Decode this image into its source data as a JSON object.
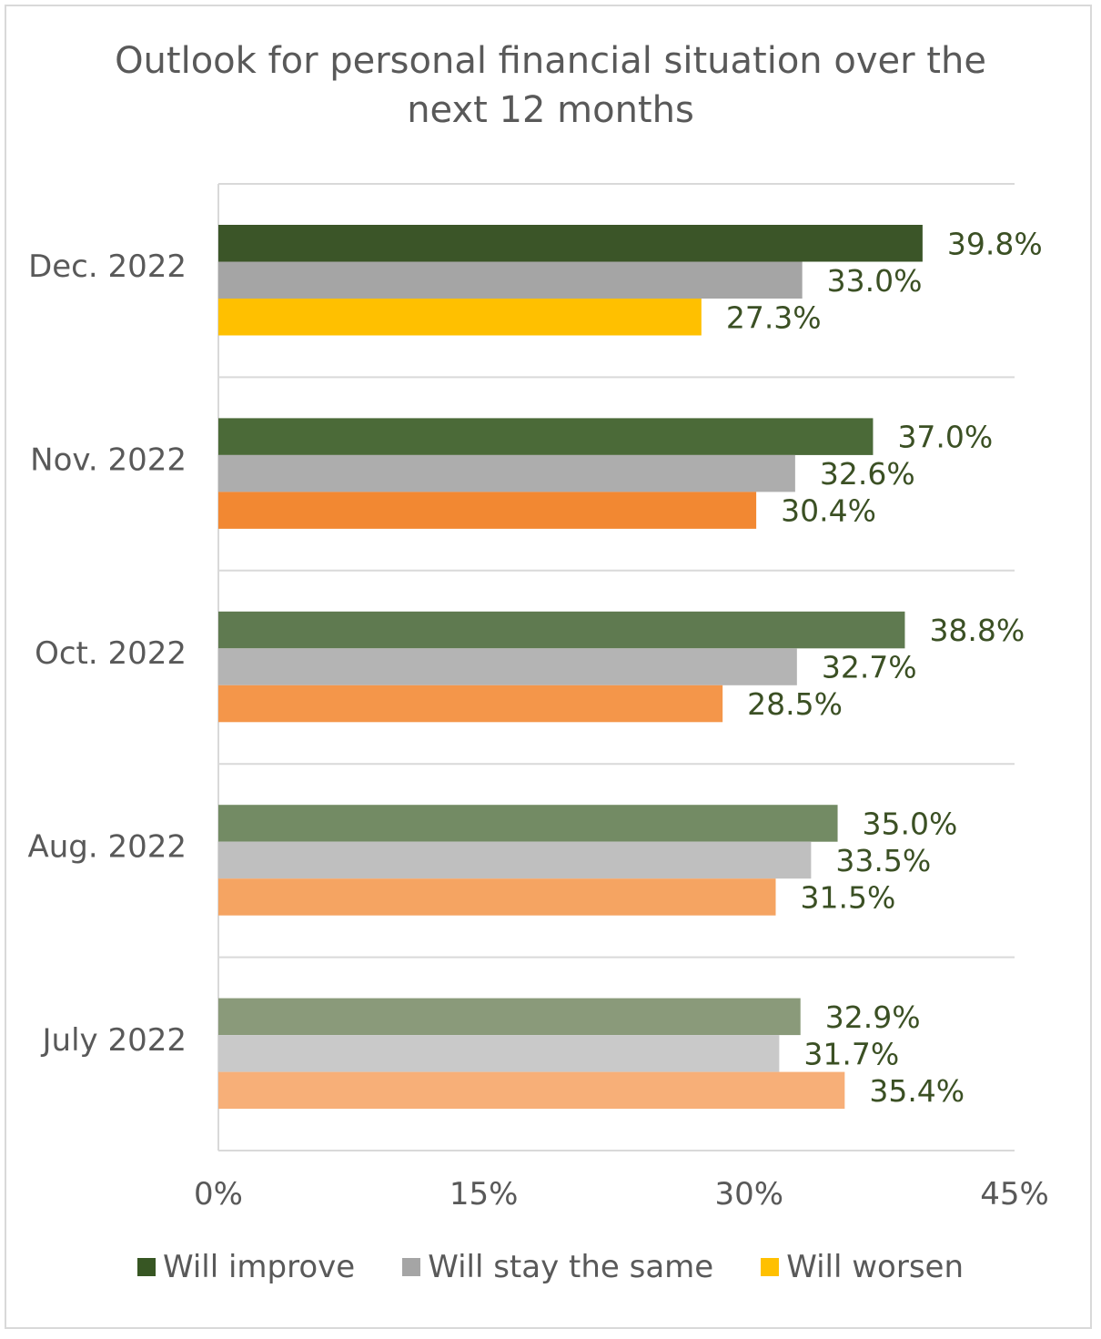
{
  "chart_data": {
    "type": "bar",
    "orientation": "horizontal",
    "title": "Outlook for personal financial situation over the next 12 months",
    "title_lines": [
      "Outlook for personal financial situation over the",
      "next 12 months"
    ],
    "categories": [
      "Dec. 2022",
      "Nov. 2022",
      "Oct. 2022",
      "Aug. 2022",
      "July 2022"
    ],
    "series": [
      {
        "name": "Will improve",
        "values": [
          39.8,
          37.0,
          38.8,
          35.0,
          32.9
        ],
        "labels": [
          "39.8%",
          "37.0%",
          "38.8%",
          "35.0%",
          "32.9%"
        ],
        "colors": [
          "#3b5528",
          "#4b6a38",
          "#5f7a50",
          "#738b64",
          "#8a9a7a"
        ]
      },
      {
        "name": "Will stay the same",
        "values": [
          33.0,
          32.6,
          32.7,
          33.5,
          31.7
        ],
        "labels": [
          "33.0%",
          "32.6%",
          "32.7%",
          "33.5%",
          "31.7%"
        ],
        "colors": [
          "#a5a5a5",
          "#adadad",
          "#b4b4b4",
          "#bfbfbf",
          "#c9c9c9"
        ]
      },
      {
        "name": "Will worsen",
        "values": [
          27.3,
          30.4,
          28.5,
          31.5,
          35.4
        ],
        "labels": [
          "27.3%",
          "30.4%",
          "28.5%",
          "31.5%",
          "35.4%"
        ],
        "colors": [
          "#ffc000",
          "#f28832",
          "#f4964a",
          "#f5a462",
          "#f7af78"
        ]
      }
    ],
    "xlim": [
      0,
      45
    ],
    "xticks": [
      0,
      15,
      30,
      45
    ],
    "xtick_labels": [
      "0%",
      "15%",
      "30%",
      "45%"
    ],
    "xlabel": "",
    "ylabel": "",
    "grid": "horizontal separators between categories",
    "legend": {
      "position": "bottom",
      "entries": [
        {
          "label": "Will improve",
          "color": "#375623"
        },
        {
          "label": "Will stay the same",
          "color": "#a5a5a5"
        },
        {
          "label": "Will worsen",
          "color": "#ffc000"
        }
      ]
    }
  }
}
